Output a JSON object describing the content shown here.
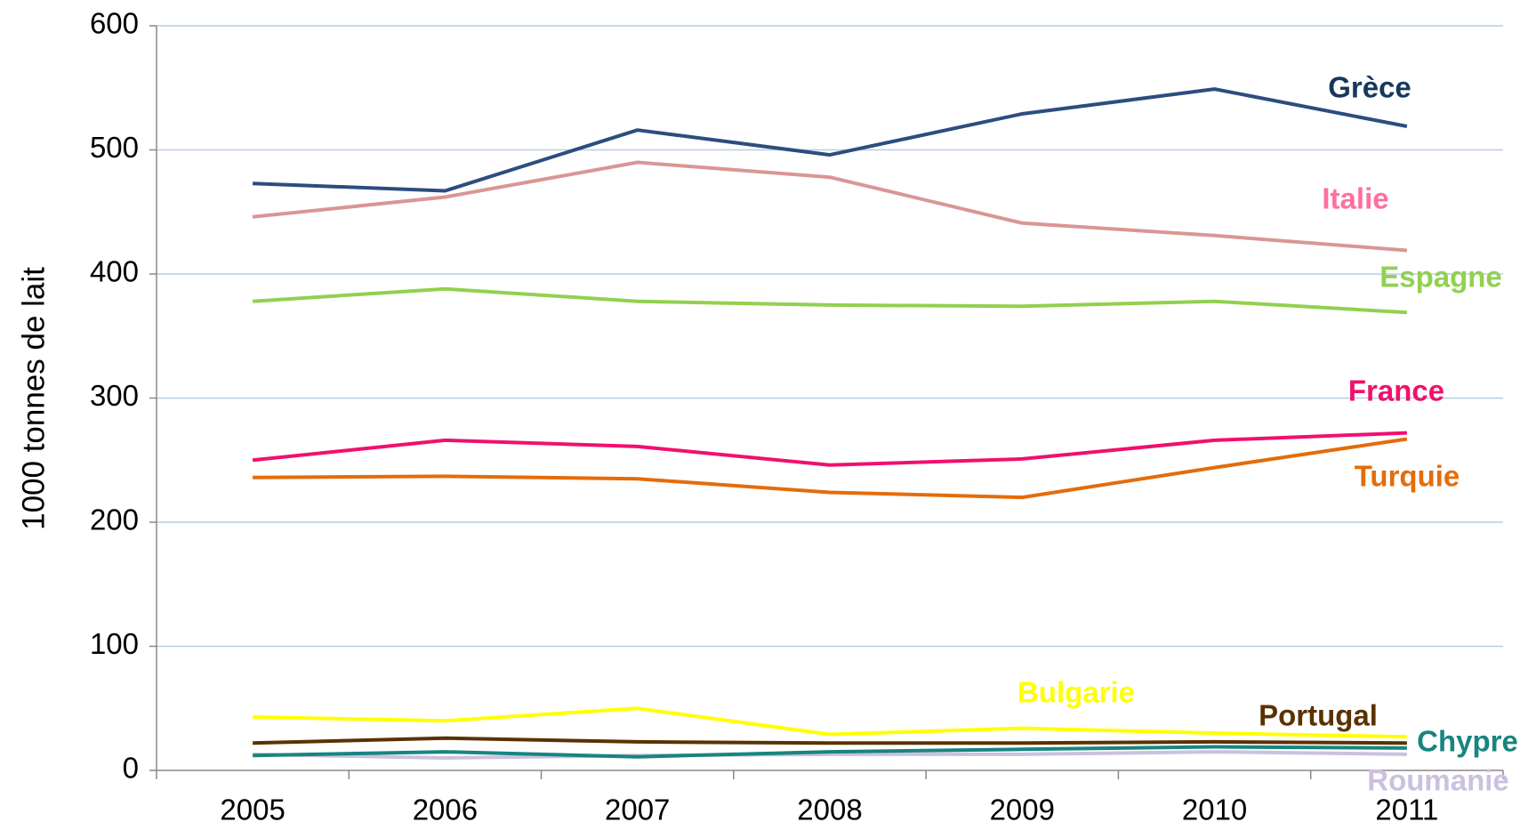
{
  "chart_data": {
    "type": "line",
    "y_label": "1000 tonnes de lait",
    "categories": [
      "2005",
      "2006",
      "2007",
      "2008",
      "2009",
      "2010",
      "2011"
    ],
    "ylim": [
      0,
      600
    ],
    "yticks": [
      0,
      100,
      200,
      300,
      400,
      500,
      600
    ],
    "grid": true,
    "series": [
      {
        "name": "Grèce",
        "color": "#2c4d7e",
        "label_color": "#17375e",
        "values": [
          473,
          467,
          516,
          496,
          529,
          549,
          519
        ]
      },
      {
        "name": "Italie",
        "color": "#d99694",
        "label_color": "#ff6f9f",
        "values": [
          446,
          462,
          490,
          478,
          441,
          431,
          419
        ]
      },
      {
        "name": "Espagne",
        "color": "#92d050",
        "label_color": "#92d050",
        "values": [
          378,
          388,
          378,
          375,
          374,
          378,
          369
        ]
      },
      {
        "name": "France",
        "color": "#f0106e",
        "label_color": "#f0106e",
        "values": [
          250,
          266,
          261,
          246,
          251,
          266,
          272
        ]
      },
      {
        "name": "Turquie",
        "color": "#e46c0a",
        "label_color": "#e46c0a",
        "values": [
          236,
          237,
          235,
          224,
          220,
          244,
          267
        ]
      },
      {
        "name": "Bulgarie",
        "color": "#ffff00",
        "label_color": "#ffff00",
        "values": [
          43,
          40,
          50,
          29,
          34,
          30,
          27
        ]
      },
      {
        "name": "Portugal",
        "color": "#5a3200",
        "label_color": "#5a3200",
        "values": [
          22,
          26,
          23,
          22,
          22,
          23,
          22
        ]
      },
      {
        "name": "Chypre",
        "color": "#17857f",
        "label_color": "#17857f",
        "values": [
          12,
          15,
          11,
          15,
          17,
          19,
          18
        ]
      },
      {
        "name": "Roumanie",
        "color": "#ccc0e0",
        "label_color": "#ccc0e0",
        "values": [
          13,
          10,
          12,
          13,
          13,
          15,
          13
        ]
      }
    ]
  }
}
